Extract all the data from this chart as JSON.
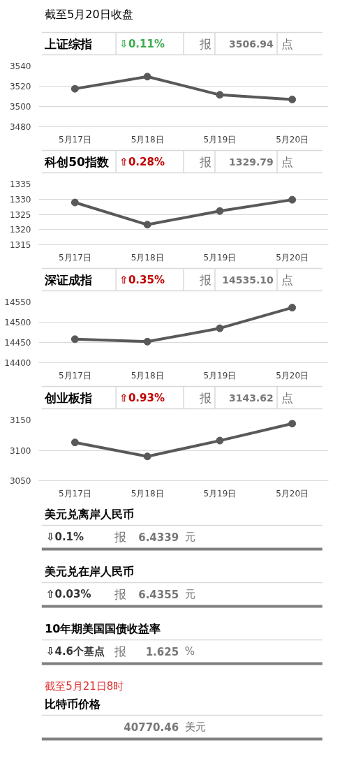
{
  "chart_data": [
    {
      "type": "other",
      "title": "截至5月20日收盘"
    },
    {
      "type": "line",
      "title": "上证综指",
      "annotations": [
        "⇩0.11%",
        "报",
        "3506.94",
        "点"
      ],
      "categories": [
        "5月17日",
        "5月18日",
        "5月19日",
        "5月20日"
      ],
      "series": [
        {
          "color": "#595959",
          "values": [
            3517.5,
            3529.5,
            3511.5,
            3506.9
          ]
        }
      ],
      "ylim": [
        3480,
        3540
      ],
      "yticks": [
        3480,
        3500,
        3520,
        3540
      ],
      "grid": "y",
      "marker": "circle"
    },
    {
      "type": "line",
      "title": "科创50指数",
      "annotations": [
        "⇧0.28%",
        "报",
        "1329.79",
        "点"
      ],
      "categories": [
        "5月17日",
        "5月18日",
        "5月19日",
        "5月20日"
      ],
      "series": [
        {
          "color": "#595959",
          "values": [
            1328.9,
            1321.6,
            1326.1,
            1329.8
          ]
        }
      ],
      "ylim": [
        1315,
        1335
      ],
      "yticks": [
        1315,
        1320,
        1325,
        1330,
        1335
      ],
      "grid": "y",
      "marker": "circle"
    },
    {
      "type": "line",
      "title": "深证成指",
      "annotations": [
        "⇧0.35%",
        "报",
        "14535.10",
        "点"
      ],
      "categories": [
        "5月17日",
        "5月18日",
        "5月19日",
        "5月20日"
      ],
      "series": [
        {
          "color": "#595959",
          "values": [
            14458,
            14452,
            14485,
            14536
          ]
        }
      ],
      "ylim": [
        14400,
        14550
      ],
      "yticks": [
        14400,
        14450,
        14500,
        14550
      ],
      "grid": "y",
      "marker": "circle"
    },
    {
      "type": "line",
      "title": "创业板指",
      "annotations": [
        "⇧0.93%",
        "报",
        "3143.62",
        "点"
      ],
      "categories": [
        "5月17日",
        "5月18日",
        "5月19日",
        "5月20日"
      ],
      "series": [
        {
          "color": "#595959",
          "values": [
            3113,
            3090,
            3116,
            3144
          ]
        }
      ],
      "ylim": [
        3050,
        3150
      ],
      "yticks": [
        3050,
        3100,
        3150
      ],
      "grid": "y",
      "marker": "circle"
    },
    {
      "type": "other",
      "title": "美元兑离岸人民币",
      "annotations": [
        "⇩0.1%",
        "报",
        "6.4339",
        "元"
      ]
    },
    {
      "type": "other",
      "title": "美元兑在岸人民币",
      "annotations": [
        "⇧0.03%",
        "报",
        "6.4355",
        "元"
      ]
    },
    {
      "type": "other",
      "title": "10年期美国国债收益率",
      "annotations": [
        "⇩4.6个基点",
        "报",
        "1.625",
        "%"
      ]
    },
    {
      "type": "other",
      "subtitle": "截至5月21日8时",
      "title": "比特币价格",
      "annotations": [
        "40770.46",
        "美元"
      ]
    }
  ]
}
